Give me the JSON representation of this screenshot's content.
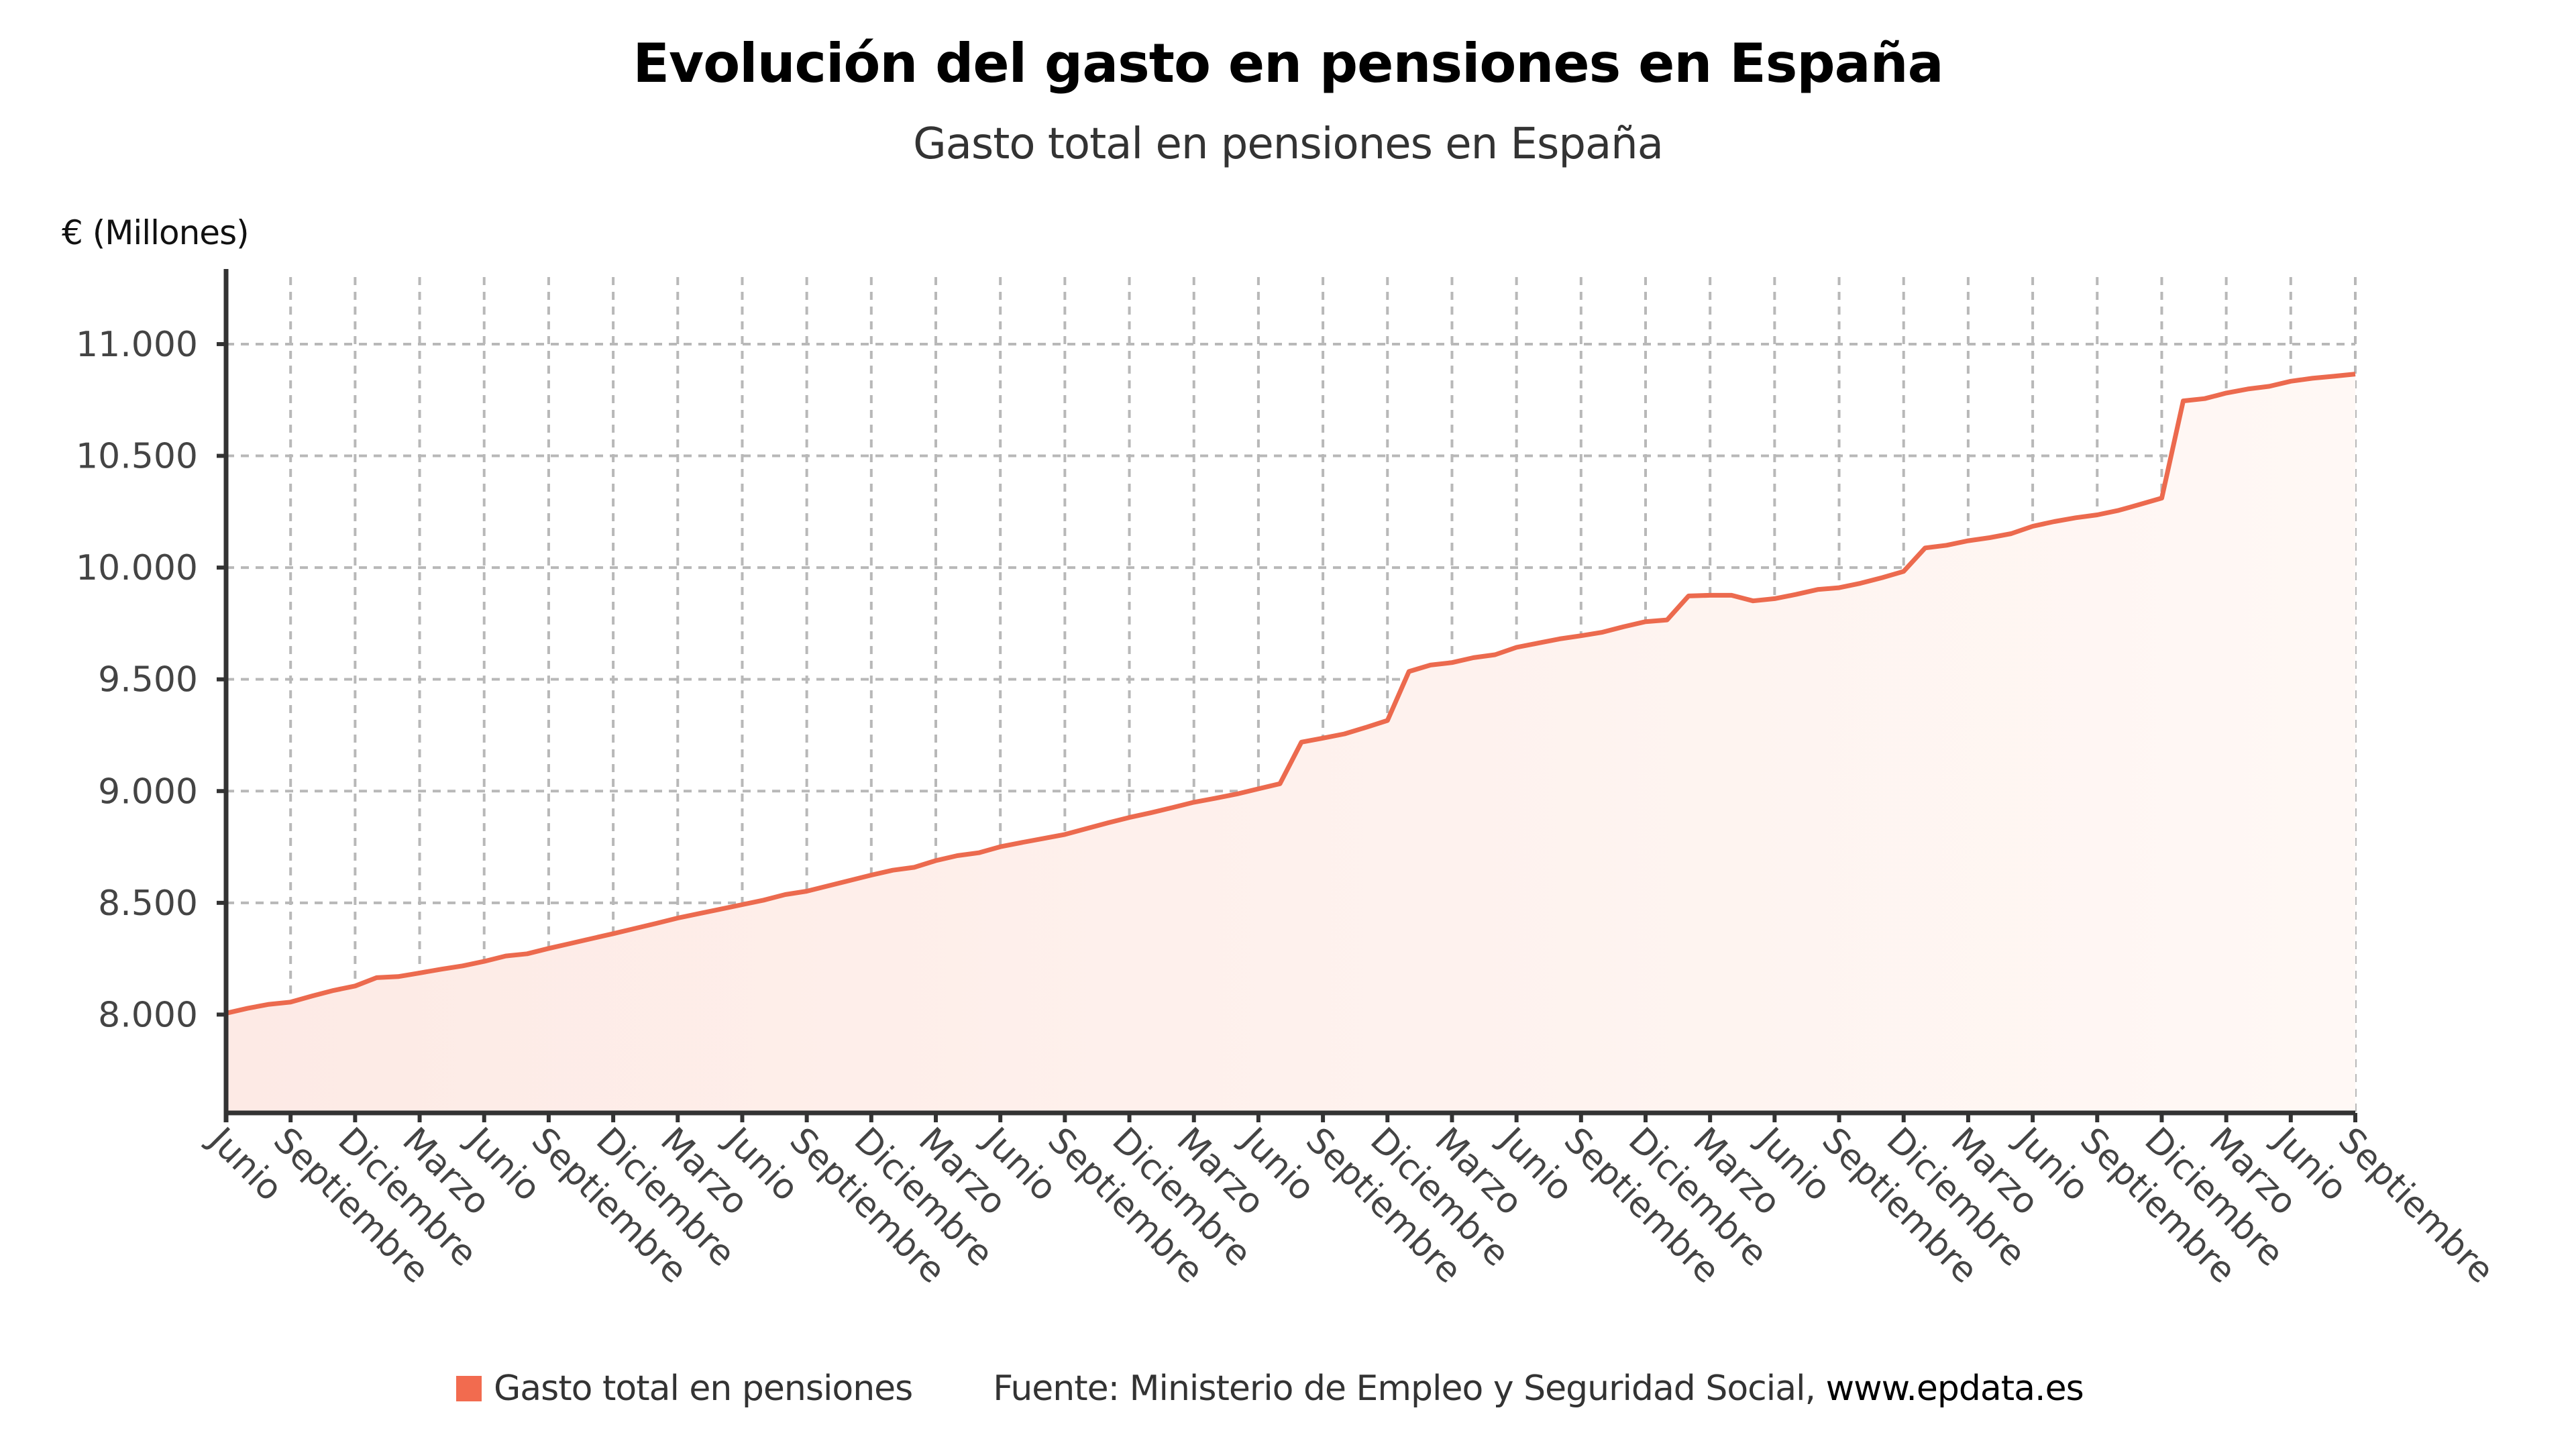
{
  "title": "Evolución del gasto en pensiones en España",
  "subtitle": "Gasto total en pensiones en España",
  "legend": {
    "series_label": "Gasto total en pensiones",
    "source_prefix": "Fuente: Ministerio de Empleo y Seguridad Social,",
    "source_link": "www.epdata.es"
  },
  "colors": {
    "line": "#ec6a4e",
    "fill": "#fdece8",
    "swatch": "#f26b4f",
    "grid": "#b8b8b8",
    "axis": "#333333"
  },
  "chart_data": {
    "type": "area",
    "title": "Evolución del gasto en pensiones en España",
    "subtitle": "Gasto total en pensiones en España",
    "xlabel": "",
    "ylabel": "€ (Millones)",
    "ylim": [
      7560,
      11300
    ],
    "yticks": [
      8000,
      8500,
      9000,
      9500,
      10000,
      10500,
      11000
    ],
    "ytick_labels": [
      "8.000",
      "8.500",
      "9.000",
      "9.500",
      "10.000",
      "10.500",
      "11.000"
    ],
    "x_frequency": "monthly",
    "x_tick_every_months": 3,
    "x_tick_labels": [
      "Junio",
      "Septiembre",
      "Diciembre",
      "Marzo",
      "Junio",
      "Septiembre",
      "Diciembre",
      "Marzo",
      "Junio",
      "Septiembre",
      "Diciembre",
      "Marzo",
      "Junio",
      "Septiembre",
      "Diciembre",
      "Marzo",
      "Junio",
      "Septiembre",
      "Diciembre",
      "Marzo",
      "Junio",
      "Septiembre",
      "Diciembre",
      "Marzo",
      "Junio",
      "Septiembre",
      "Diciembre",
      "Marzo",
      "Junio",
      "Septiembre",
      "Diciembre",
      "Marzo",
      "Junio",
      "Septiembre"
    ],
    "grid": true,
    "legend_position": "bottom",
    "series": [
      {
        "name": "Gasto total en pensiones",
        "values": [
          8006,
          8028,
          8046,
          8056,
          8083,
          8108,
          8128,
          8165,
          8170,
          8186,
          8203,
          8218,
          8238,
          8262,
          8272,
          8296,
          8318,
          8340,
          8362,
          8385,
          8408,
          8432,
          8452,
          8472,
          8492,
          8512,
          8537,
          8552,
          8576,
          8600,
          8624,
          8646,
          8659,
          8689,
          8711,
          8724,
          8751,
          8770,
          8788,
          8806,
          8832,
          8858,
          8882,
          8903,
          8926,
          8950,
          8968,
          8987,
          9010,
          9033,
          9219,
          9237,
          9256,
          9285,
          9316,
          9535,
          9564,
          9575,
          9597,
          9610,
          9643,
          9662,
          9681,
          9695,
          9711,
          9736,
          9758,
          9766,
          9873,
          9876,
          9876,
          9851,
          9861,
          9880,
          9902,
          9910,
          9930,
          9955,
          9983,
          10088,
          10100,
          10120,
          10134,
          10152,
          10185,
          10206,
          10223,
          10236,
          10256,
          10283,
          10311,
          10746,
          10756,
          10781,
          10799,
          10811,
          10834,
          10847,
          10856,
          10866
        ]
      }
    ]
  }
}
